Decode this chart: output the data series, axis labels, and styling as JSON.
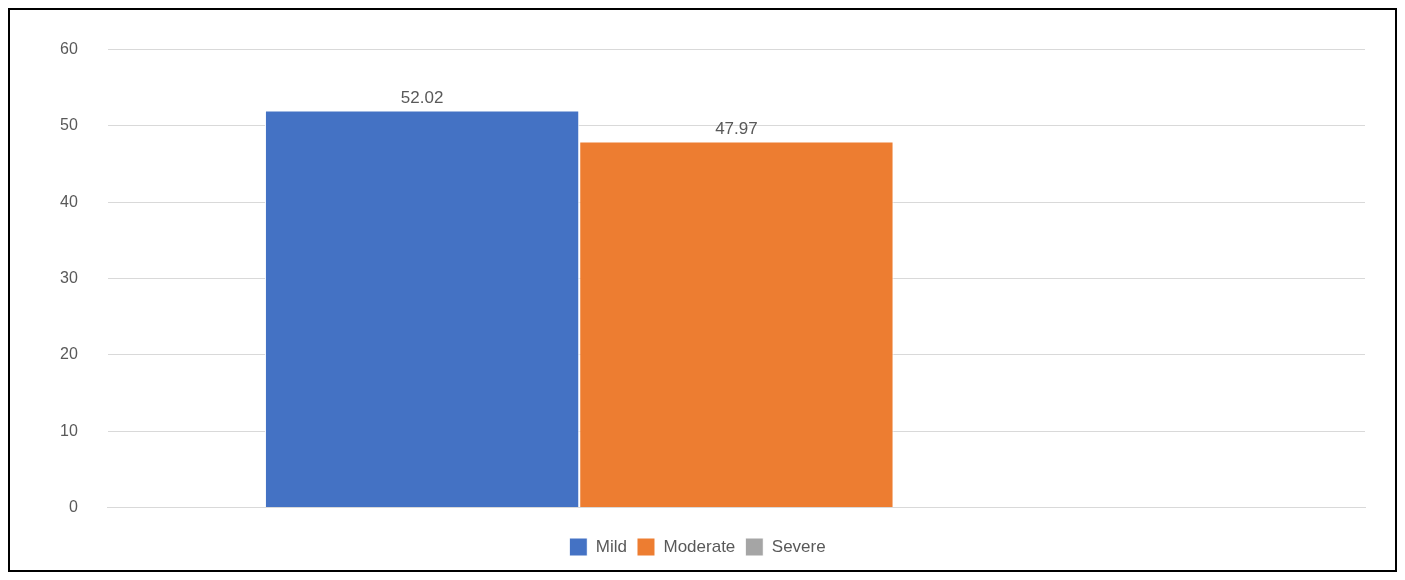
{
  "chart_data": {
    "type": "bar",
    "categories": [
      null
    ],
    "series": [
      {
        "name": "Mild",
        "color": "#4472c4",
        "values": [
          52.02
        ]
      },
      {
        "name": "Moderate",
        "color": "#ed7d31",
        "values": [
          47.97
        ]
      },
      {
        "name": "Severe",
        "color": "#a5a5a5",
        "values": [
          null
        ]
      }
    ],
    "ylim": [
      0,
      60
    ],
    "yticks": [
      0,
      10,
      20,
      30,
      40,
      50,
      60
    ],
    "grid": "y",
    "legend": "bottom",
    "data_labels": true
  }
}
